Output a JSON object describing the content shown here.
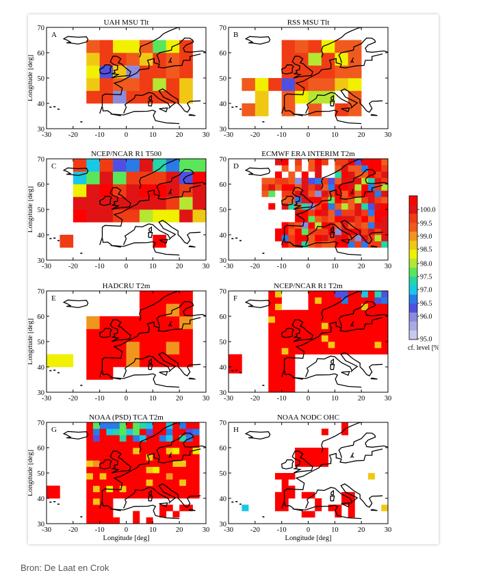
{
  "caption": "Bron: De Laat en Crok",
  "colors": {
    "scale": [
      "#c8c8f0",
      "#aaaae0",
      "#8c8cdc",
      "#5050e0",
      "#2a7ae8",
      "#18c8e6",
      "#24d6a8",
      "#5ae65a",
      "#b4e632",
      "#f0f000",
      "#f0c814",
      "#f0961e",
      "#f05a1e",
      "#f03c14",
      "#e01414",
      "#ff0000"
    ],
    "land": "#000000",
    "frame": "#000000"
  },
  "colorbar": {
    "ticks": [
      "100.0",
      "99.5",
      "99.0",
      "98.5",
      "98.0",
      "97.5",
      "97.0",
      "96.5",
      "96.0",
      "95.0"
    ],
    "label": "cf. level [%]"
  },
  "chart_data": [
    {
      "type": "heatmap",
      "id": "uah",
      "letter": "A",
      "title": "UAH MSU Tlt",
      "xlabel": "",
      "ylabel": "Longitude [deg]",
      "xlim": [
        -30,
        30
      ],
      "ylim": [
        30,
        70
      ],
      "xticks": [
        "-30",
        "-20",
        "-10",
        "0",
        "10",
        "20",
        "30"
      ],
      "yticks": [
        "30",
        "40",
        "50",
        "60",
        "70"
      ]
    },
    {
      "type": "heatmap",
      "id": "rss",
      "letter": "B",
      "title": "RSS MSU Tlt",
      "xlabel": "",
      "ylabel": "",
      "xlim": [
        -30,
        30
      ],
      "ylim": [
        30,
        70
      ],
      "xticks": [
        "-30",
        "-20",
        "-10",
        "0",
        "10",
        "20",
        "30"
      ],
      "yticks": [
        "30",
        "40",
        "50",
        "60",
        "70"
      ]
    },
    {
      "type": "heatmap",
      "id": "ncep500",
      "letter": "C",
      "title": "NCEP/NCAR R1 T500",
      "xlabel": "",
      "ylabel": "Longitude [deg]",
      "xlim": [
        -30,
        30
      ],
      "ylim": [
        30,
        70
      ],
      "xticks": [
        "-30",
        "-20",
        "-10",
        "0",
        "10",
        "20",
        "30"
      ],
      "yticks": [
        "30",
        "40",
        "50",
        "60",
        "70"
      ]
    },
    {
      "type": "heatmap",
      "id": "ecmwf",
      "letter": "D",
      "title": "ECMWF ERA INTERIM T2m",
      "xlabel": "",
      "ylabel": "",
      "xlim": [
        -30,
        30
      ],
      "ylim": [
        30,
        70
      ],
      "xticks": [
        "-30",
        "-20",
        "-10",
        "0",
        "10",
        "20",
        "30"
      ],
      "yticks": [
        "30",
        "40",
        "50",
        "60",
        "70"
      ]
    },
    {
      "type": "heatmap",
      "id": "hadcru",
      "letter": "E",
      "title": "HADCRU T2m",
      "xlabel": "",
      "ylabel": "Longitude [deg]",
      "xlim": [
        -30,
        30
      ],
      "ylim": [
        30,
        70
      ],
      "xticks": [
        "-30",
        "-20",
        "-10",
        "0",
        "10",
        "20",
        "30"
      ],
      "yticks": [
        "30",
        "40",
        "50",
        "60",
        "70"
      ]
    },
    {
      "type": "heatmap",
      "id": "ncept2m",
      "letter": "F",
      "title": "NCEP/NCAR R1 T2m",
      "xlabel": "",
      "ylabel": "",
      "xlim": [
        -30,
        30
      ],
      "ylim": [
        30,
        70
      ],
      "xticks": [
        "-30",
        "-20",
        "-10",
        "0",
        "10",
        "20",
        "30"
      ],
      "yticks": [
        "30",
        "40",
        "50",
        "60",
        "70"
      ]
    },
    {
      "type": "heatmap",
      "id": "noaatca",
      "letter": "G",
      "title": "NOAA (PSD) TCA T2m",
      "xlabel": "Longitude [deg]",
      "ylabel": "Longitude [deg]",
      "xlim": [
        -30,
        30
      ],
      "ylim": [
        30,
        70
      ],
      "xticks": [
        "-30",
        "-20",
        "-10",
        "0",
        "10",
        "20",
        "30"
      ],
      "yticks": [
        "30",
        "40",
        "50",
        "60",
        "70"
      ]
    },
    {
      "type": "heatmap",
      "id": "noaaohc",
      "letter": "H",
      "title": "NOAA NODC OHC",
      "xlabel": "Longitude [deg]",
      "ylabel": "",
      "xlim": [
        -30,
        30
      ],
      "ylim": [
        30,
        70
      ],
      "xticks": [
        "-30",
        "-20",
        "-10",
        "0",
        "10",
        "20",
        "30"
      ],
      "yticks": [
        "30",
        "40",
        "50",
        "60",
        "70"
      ]
    }
  ]
}
